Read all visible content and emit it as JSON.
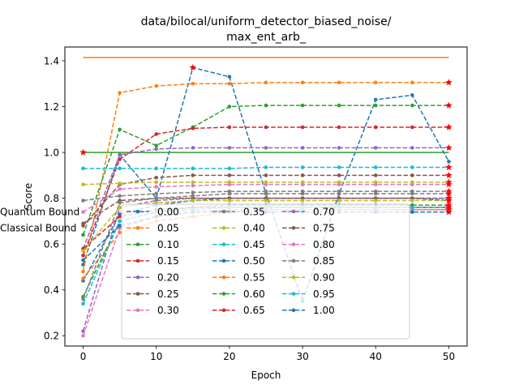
{
  "chart_data": {
    "type": "line",
    "title_lines": [
      "data/bilocal/uniform_detector_biased_noise/",
      "max_ent_arb_"
    ],
    "xlabel": "Epoch",
    "ylabel": "Score",
    "xlim": [
      -2.5,
      52.5
    ],
    "ylim": [
      0.155,
      1.46
    ],
    "xticks": [
      0,
      10,
      20,
      30,
      40,
      50
    ],
    "yticks": [
      0.2,
      0.4,
      0.6,
      0.8,
      1.0,
      1.2,
      1.4
    ],
    "ytick_labels": [
      "0.2",
      "0.4",
      "0.6",
      "0.8",
      "1.0",
      "1.2",
      "1.4"
    ],
    "grid": false,
    "legend_position": "lower-center",
    "x": [
      0,
      5,
      10,
      15,
      20,
      25,
      30,
      35,
      40,
      45,
      50
    ],
    "series": [
      {
        "name": "0.00",
        "color": "#1f77b4",
        "values": [
          0.51,
          0.99,
          0.8,
          1.37,
          1.33,
          0.82,
          0.35,
          0.82,
          1.23,
          1.25,
          0.96
        ],
        "star_index": 3
      },
      {
        "name": "0.05",
        "color": "#ff7f0e",
        "values": [
          0.48,
          1.26,
          1.29,
          1.3,
          1.3,
          1.305,
          1.305,
          1.305,
          1.305,
          1.305,
          1.305
        ],
        "star_index": 10
      },
      {
        "name": "0.10",
        "color": "#2ca02c",
        "values": [
          0.64,
          1.1,
          1.03,
          1.11,
          1.2,
          1.205,
          1.205,
          1.205,
          1.205,
          1.205,
          1.205
        ],
        "star_index": 10
      },
      {
        "name": "0.15",
        "color": "#d62728",
        "values": [
          0.55,
          0.97,
          1.08,
          1.105,
          1.11,
          1.11,
          1.11,
          1.11,
          1.11,
          1.11,
          1.11
        ],
        "star_index": 10
      },
      {
        "name": "0.20",
        "color": "#9467bd",
        "values": [
          0.58,
          0.99,
          1.015,
          1.02,
          1.02,
          1.02,
          1.02,
          1.02,
          1.02,
          1.02,
          1.02
        ],
        "star_index": 10
      },
      {
        "name": "0.25",
        "color": "#8c564b",
        "values": [
          0.68,
          0.86,
          0.89,
          0.9,
          0.9,
          0.9,
          0.9,
          0.9,
          0.9,
          0.9,
          0.9
        ],
        "star_index": 10
      },
      {
        "name": "0.30",
        "color": "#e377c2",
        "values": [
          0.74,
          0.84,
          0.85,
          0.855,
          0.86,
          0.86,
          0.86,
          0.86,
          0.86,
          0.86,
          0.86
        ],
        "star_index": 10
      },
      {
        "name": "0.35",
        "color": "#7f7f7f",
        "values": [
          0.79,
          0.81,
          0.82,
          0.825,
          0.83,
          0.83,
          0.83,
          0.83,
          0.83,
          0.83,
          0.83
        ],
        "star_index": 10
      },
      {
        "name": "0.40",
        "color": "#bcbd22",
        "values": [
          0.86,
          0.865,
          0.87,
          0.87,
          0.87,
          0.87,
          0.87,
          0.87,
          0.87,
          0.87,
          0.87
        ],
        "star_index": 10
      },
      {
        "name": "0.45",
        "color": "#17becf",
        "values": [
          0.93,
          0.93,
          0.93,
          0.93,
          0.93,
          0.935,
          0.935,
          0.935,
          0.935,
          0.935,
          0.935
        ],
        "star_index": 10
      },
      {
        "name": "0.50",
        "color": "#1f77b4",
        "values": [
          0.44,
          0.73,
          0.77,
          0.79,
          0.8,
          0.8,
          0.8,
          0.8,
          0.8,
          0.8,
          0.8
        ],
        "star_index": 10
      },
      {
        "name": "0.55",
        "color": "#ff7f0e",
        "values": [
          0.45,
          0.65,
          0.7,
          0.72,
          0.74,
          0.75,
          0.75,
          0.75,
          0.75,
          0.75,
          0.75
        ],
        "star_index": 10
      },
      {
        "name": "0.60",
        "color": "#2ca02c",
        "values": [
          0.37,
          0.7,
          0.74,
          0.76,
          0.77,
          0.77,
          0.77,
          0.77,
          0.77,
          0.77,
          0.77
        ],
        "star_index": 10
      },
      {
        "name": "0.65",
        "color": "#d62728",
        "values": [
          0.58,
          0.72,
          0.75,
          0.76,
          0.76,
          0.76,
          0.76,
          0.76,
          0.76,
          0.76,
          0.76
        ],
        "star_index": 10
      },
      {
        "name": "0.70",
        "color": "#9467bd",
        "values": [
          0.22,
          0.76,
          0.79,
          0.8,
          0.8,
          0.8,
          0.8,
          0.8,
          0.8,
          0.8,
          0.8
        ],
        "star_index": 10
      },
      {
        "name": "0.75",
        "color": "#8c564b",
        "values": [
          0.69,
          0.79,
          0.8,
          0.8,
          0.8,
          0.8,
          0.8,
          0.8,
          0.8,
          0.8,
          0.79
        ],
        "star_index": 10
      },
      {
        "name": "0.80",
        "color": "#e377c2",
        "values": [
          0.2,
          0.67,
          0.72,
          0.74,
          0.75,
          0.75,
          0.75,
          0.75,
          0.75,
          0.75,
          0.75
        ],
        "star_index": 10
      },
      {
        "name": "0.85",
        "color": "#7f7f7f",
        "values": [
          0.36,
          0.78,
          0.8,
          0.81,
          0.82,
          0.82,
          0.82,
          0.82,
          0.82,
          0.82,
          0.82
        ],
        "star_index": 10
      },
      {
        "name": "0.90",
        "color": "#bcbd22",
        "values": [
          0.57,
          0.76,
          0.78,
          0.79,
          0.79,
          0.79,
          0.79,
          0.79,
          0.79,
          0.79,
          0.79
        ],
        "star_index": 10
      },
      {
        "name": "0.95",
        "color": "#17becf",
        "values": [
          0.34,
          0.7,
          0.74,
          0.75,
          0.76,
          0.76,
          0.76,
          0.76,
          0.76,
          0.76,
          0.76
        ],
        "star_index": 10
      },
      {
        "name": "1.00",
        "color": "#1f77b4",
        "values": [
          0.53,
          0.68,
          0.72,
          0.74,
          0.74,
          0.74,
          0.74,
          0.74,
          0.74,
          0.74,
          0.74
        ],
        "star_index": 10
      }
    ],
    "bounds": [
      {
        "name": "Quantum Bound",
        "color": "#ff7f0e",
        "value": 1.414
      },
      {
        "name": "Classical Bound",
        "color": "#2ca02c",
        "value": 1.0
      }
    ]
  }
}
